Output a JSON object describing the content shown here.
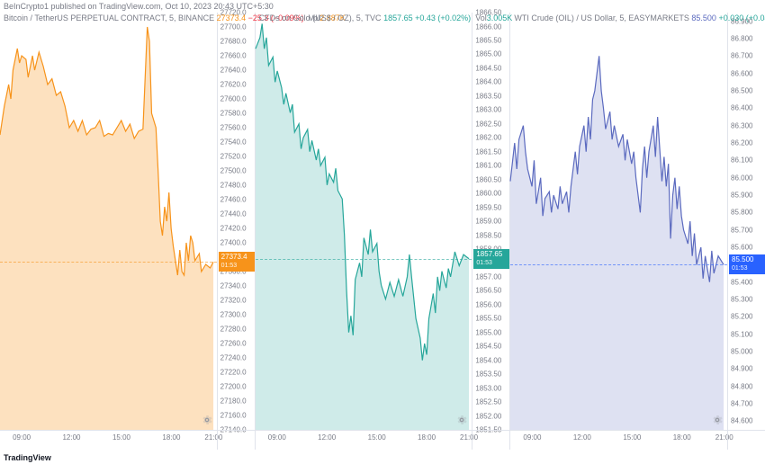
{
  "meta": {
    "published_by": "BeInCrypto1 published on TradingView.com, Oct 10, 2023 20:43 UTC+5:30",
    "footer": "TradingView"
  },
  "x_ticks": [
    "09:00",
    "12:00",
    "15:00",
    "18:00",
    "21:00"
  ],
  "x_tick_pos": [
    0.1,
    0.33,
    0.56,
    0.79,
    0.985
  ],
  "gear_color": "#9598a1",
  "charts": [
    {
      "title_main": "Bitcoin / TetherUS PERPETUAL CONTRACT, 5, BINANCE",
      "last": "27373.4",
      "change": "−25.3",
      "change_pct": "(−0.09%)",
      "vol_label": "Vol",
      "vol": "2.887K",
      "accent": "#f7931a",
      "neg_color": "#f23645",
      "fill_opacity": 0.28,
      "line_width": 1.2,
      "ylim": [
        27140,
        27720
      ],
      "ytick_step": 20,
      "last_y": 27373.4,
      "tag_bg": "#f7931a",
      "tag_sub": "01:53",
      "y_label_decimals": 1,
      "points": [
        [
          0.0,
          27550
        ],
        [
          0.02,
          27590
        ],
        [
          0.04,
          27620
        ],
        [
          0.05,
          27600
        ],
        [
          0.06,
          27640
        ],
        [
          0.08,
          27670
        ],
        [
          0.09,
          27650
        ],
        [
          0.1,
          27660
        ],
        [
          0.12,
          27655
        ],
        [
          0.13,
          27630
        ],
        [
          0.15,
          27660
        ],
        [
          0.16,
          27640
        ],
        [
          0.18,
          27665
        ],
        [
          0.2,
          27645
        ],
        [
          0.22,
          27620
        ],
        [
          0.24,
          27628
        ],
        [
          0.26,
          27605
        ],
        [
          0.28,
          27610
        ],
        [
          0.3,
          27590
        ],
        [
          0.32,
          27560
        ],
        [
          0.34,
          27570
        ],
        [
          0.36,
          27555
        ],
        [
          0.38,
          27570
        ],
        [
          0.4,
          27550
        ],
        [
          0.42,
          27558
        ],
        [
          0.44,
          27560
        ],
        [
          0.46,
          27570
        ],
        [
          0.48,
          27548
        ],
        [
          0.5,
          27552
        ],
        [
          0.52,
          27550
        ],
        [
          0.54,
          27560
        ],
        [
          0.56,
          27570
        ],
        [
          0.58,
          27555
        ],
        [
          0.6,
          27565
        ],
        [
          0.62,
          27545
        ],
        [
          0.64,
          27555
        ],
        [
          0.66,
          27558
        ],
        [
          0.68,
          27700
        ],
        [
          0.69,
          27680
        ],
        [
          0.7,
          27580
        ],
        [
          0.72,
          27560
        ],
        [
          0.73,
          27500
        ],
        [
          0.74,
          27430
        ],
        [
          0.75,
          27410
        ],
        [
          0.76,
          27450
        ],
        [
          0.77,
          27430
        ],
        [
          0.78,
          27470
        ],
        [
          0.79,
          27420
        ],
        [
          0.8,
          27395
        ],
        [
          0.82,
          27355
        ],
        [
          0.83,
          27390
        ],
        [
          0.84,
          27360
        ],
        [
          0.85,
          27355
        ],
        [
          0.86,
          27400
        ],
        [
          0.87,
          27375
        ],
        [
          0.88,
          27410
        ],
        [
          0.89,
          27400
        ],
        [
          0.9,
          27375
        ],
        [
          0.92,
          27385
        ],
        [
          0.93,
          27360
        ],
        [
          0.95,
          27370
        ],
        [
          0.97,
          27365
        ],
        [
          0.985,
          27373.4
        ]
      ]
    },
    {
      "title_main": "CFDs on Gold (US$ / OZ), 5, TVC",
      "last": "1857.65",
      "change": "+0.43",
      "change_pct": "(+0.02%)",
      "vol_label": "Vol",
      "vol": "3.005K",
      "accent": "#26a69a",
      "pos_color": "#26a69a",
      "fill_opacity": 0.22,
      "line_width": 1.2,
      "ylim": [
        1851.5,
        1866.5
      ],
      "ytick_step": 0.5,
      "last_y": 1857.65,
      "tag_bg": "#26a69a",
      "tag_sub": "01:53",
      "y_label_decimals": 2,
      "points": [
        [
          0.0,
          1865.2
        ],
        [
          0.02,
          1865.6
        ],
        [
          0.03,
          1866.1
        ],
        [
          0.04,
          1865.2
        ],
        [
          0.05,
          1865.6
        ],
        [
          0.06,
          1864.6
        ],
        [
          0.08,
          1864.9
        ],
        [
          0.09,
          1864.0
        ],
        [
          0.1,
          1864.4
        ],
        [
          0.12,
          1863.8
        ],
        [
          0.13,
          1863.2
        ],
        [
          0.14,
          1863.6
        ],
        [
          0.16,
          1862.9
        ],
        [
          0.17,
          1863.2
        ],
        [
          0.18,
          1862.2
        ],
        [
          0.2,
          1862.5
        ],
        [
          0.21,
          1861.6
        ],
        [
          0.22,
          1862.0
        ],
        [
          0.24,
          1862.3
        ],
        [
          0.25,
          1861.5
        ],
        [
          0.26,
          1861.9
        ],
        [
          0.28,
          1861.2
        ],
        [
          0.29,
          1861.6
        ],
        [
          0.3,
          1861.0
        ],
        [
          0.32,
          1861.3
        ],
        [
          0.33,
          1860.3
        ],
        [
          0.34,
          1860.7
        ],
        [
          0.36,
          1860.4
        ],
        [
          0.37,
          1860.9
        ],
        [
          0.38,
          1860.1
        ],
        [
          0.4,
          1859.8
        ],
        [
          0.41,
          1858.5
        ],
        [
          0.42,
          1856.5
        ],
        [
          0.43,
          1855.0
        ],
        [
          0.44,
          1855.6
        ],
        [
          0.45,
          1854.9
        ],
        [
          0.46,
          1856.9
        ],
        [
          0.48,
          1857.5
        ],
        [
          0.49,
          1857.0
        ],
        [
          0.5,
          1858.4
        ],
        [
          0.52,
          1857.8
        ],
        [
          0.53,
          1858.7
        ],
        [
          0.54,
          1857.9
        ],
        [
          0.56,
          1858.2
        ],
        [
          0.57,
          1857.2
        ],
        [
          0.58,
          1856.7
        ],
        [
          0.6,
          1856.2
        ],
        [
          0.62,
          1856.8
        ],
        [
          0.64,
          1856.3
        ],
        [
          0.66,
          1856.9
        ],
        [
          0.68,
          1856.3
        ],
        [
          0.7,
          1857.0
        ],
        [
          0.71,
          1857.8
        ],
        [
          0.72,
          1857.0
        ],
        [
          0.74,
          1855.5
        ],
        [
          0.76,
          1854.8
        ],
        [
          0.77,
          1854.0
        ],
        [
          0.78,
          1854.6
        ],
        [
          0.79,
          1854.2
        ],
        [
          0.8,
          1855.5
        ],
        [
          0.82,
          1856.4
        ],
        [
          0.83,
          1855.7
        ],
        [
          0.84,
          1857.0
        ],
        [
          0.85,
          1856.5
        ],
        [
          0.86,
          1857.2
        ],
        [
          0.88,
          1856.6
        ],
        [
          0.89,
          1857.3
        ],
        [
          0.9,
          1857.0
        ],
        [
          0.92,
          1857.9
        ],
        [
          0.94,
          1857.4
        ],
        [
          0.96,
          1857.8
        ],
        [
          0.985,
          1857.65
        ]
      ]
    },
    {
      "title_main": "WTI Crude (OIL) / US Dollar, 5, EASYMARKETS",
      "last": "85.500",
      "change": "+0.030",
      "change_pct": "(+0.04%)",
      "vol_label": "",
      "vol": "",
      "accent": "#5b6abf",
      "pos_color": "#26a69a",
      "fill_opacity": 0.2,
      "line_width": 1.2,
      "ylim": [
        84.55,
        86.95
      ],
      "ytick_step": 0.1,
      "last_y": 85.5,
      "tag_bg": "#2962ff",
      "tag_sub": "01:53",
      "y_label_decimals": 3,
      "points": [
        [
          0.0,
          85.98
        ],
        [
          0.02,
          86.2
        ],
        [
          0.03,
          86.05
        ],
        [
          0.04,
          86.22
        ],
        [
          0.06,
          86.3
        ],
        [
          0.07,
          86.15
        ],
        [
          0.08,
          86.05
        ],
        [
          0.1,
          85.95
        ],
        [
          0.11,
          86.1
        ],
        [
          0.12,
          85.85
        ],
        [
          0.14,
          86.0
        ],
        [
          0.15,
          85.78
        ],
        [
          0.16,
          85.88
        ],
        [
          0.18,
          85.92
        ],
        [
          0.19,
          85.8
        ],
        [
          0.2,
          85.9
        ],
        [
          0.22,
          85.82
        ],
        [
          0.23,
          85.95
        ],
        [
          0.24,
          85.85
        ],
        [
          0.26,
          85.92
        ],
        [
          0.27,
          85.8
        ],
        [
          0.28,
          85.95
        ],
        [
          0.3,
          86.15
        ],
        [
          0.31,
          86.02
        ],
        [
          0.32,
          86.18
        ],
        [
          0.34,
          86.3
        ],
        [
          0.35,
          86.15
        ],
        [
          0.36,
          86.35
        ],
        [
          0.37,
          86.22
        ],
        [
          0.38,
          86.45
        ],
        [
          0.39,
          86.5
        ],
        [
          0.4,
          86.6
        ],
        [
          0.41,
          86.7
        ],
        [
          0.42,
          86.5
        ],
        [
          0.43,
          86.4
        ],
        [
          0.44,
          86.28
        ],
        [
          0.46,
          86.38
        ],
        [
          0.47,
          86.22
        ],
        [
          0.48,
          86.3
        ],
        [
          0.5,
          86.18
        ],
        [
          0.52,
          86.25
        ],
        [
          0.53,
          86.1
        ],
        [
          0.54,
          86.22
        ],
        [
          0.56,
          86.08
        ],
        [
          0.57,
          86.15
        ],
        [
          0.58,
          86.0
        ],
        [
          0.6,
          85.8
        ],
        [
          0.61,
          86.05
        ],
        [
          0.62,
          86.18
        ],
        [
          0.63,
          86.0
        ],
        [
          0.64,
          86.15
        ],
        [
          0.66,
          86.3
        ],
        [
          0.67,
          86.12
        ],
        [
          0.68,
          86.35
        ],
        [
          0.7,
          85.98
        ],
        [
          0.71,
          86.12
        ],
        [
          0.72,
          85.95
        ],
        [
          0.73,
          86.08
        ],
        [
          0.74,
          85.65
        ],
        [
          0.75,
          85.9
        ],
        [
          0.76,
          86.0
        ],
        [
          0.77,
          85.82
        ],
        [
          0.78,
          85.95
        ],
        [
          0.79,
          85.78
        ],
        [
          0.8,
          85.7
        ],
        [
          0.82,
          85.62
        ],
        [
          0.83,
          85.75
        ],
        [
          0.84,
          85.55
        ],
        [
          0.85,
          85.68
        ],
        [
          0.86,
          85.5
        ],
        [
          0.88,
          85.6
        ],
        [
          0.89,
          85.42
        ],
        [
          0.9,
          85.55
        ],
        [
          0.92,
          85.4
        ],
        [
          0.93,
          85.58
        ],
        [
          0.94,
          85.45
        ],
        [
          0.96,
          85.55
        ],
        [
          0.985,
          85.5
        ]
      ]
    }
  ]
}
